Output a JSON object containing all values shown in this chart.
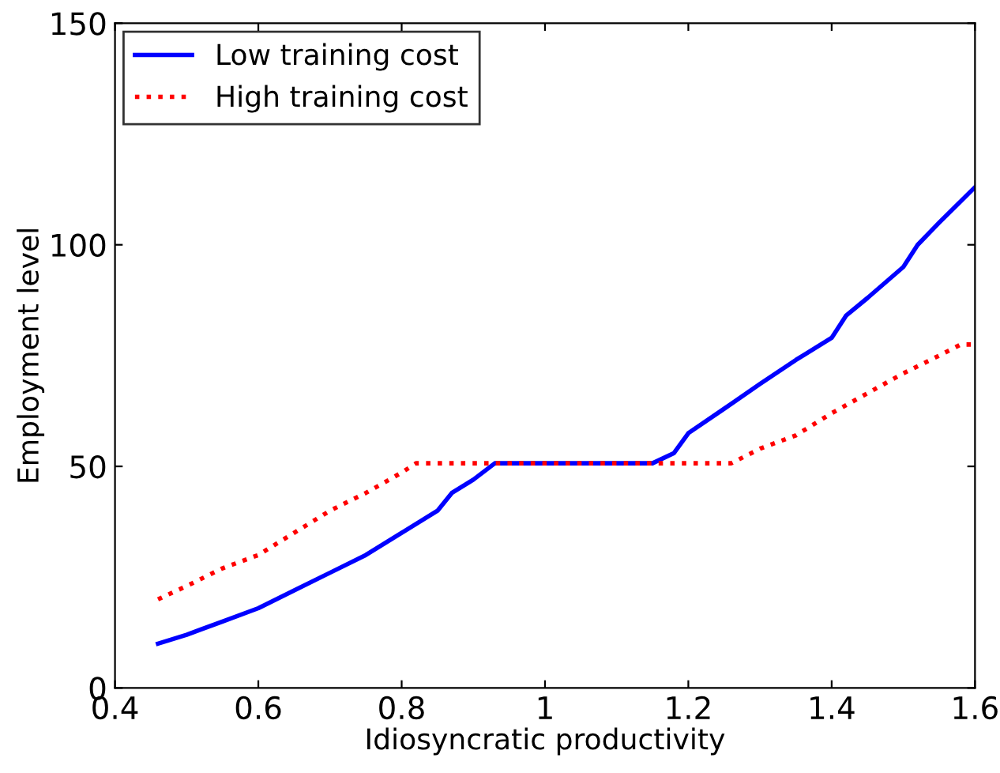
{
  "chart_data": {
    "type": "line",
    "xlabel": "Idiosyncratic productivity",
    "ylabel": "Employment level",
    "xlim": [
      0.4,
      1.6
    ],
    "xticks": [
      0.4,
      0.6,
      0.8,
      1,
      1.2,
      1.4,
      1.6
    ],
    "ylim": [
      0,
      150
    ],
    "yticks": [
      0,
      50,
      100,
      150
    ],
    "grid": false,
    "legend": "top left",
    "series": [
      {
        "name": "Low training cost",
        "color": "#0000ff",
        "line_style": "solid",
        "x": [
          0.46,
          0.5,
          0.55,
          0.6,
          0.65,
          0.7,
          0.75,
          0.8,
          0.85,
          0.87,
          0.9,
          0.93,
          1.0,
          1.1,
          1.15,
          1.18,
          1.2,
          1.25,
          1.3,
          1.35,
          1.4,
          1.42,
          1.45,
          1.5,
          1.52,
          1.55,
          1.6
        ],
        "values": [
          10,
          12,
          15,
          18,
          22,
          26,
          30,
          35,
          40,
          44,
          47,
          50.7,
          50.7,
          50.7,
          50.7,
          53,
          57.5,
          63,
          68.6,
          74,
          79,
          84,
          88,
          95,
          100,
          105,
          113
        ]
      },
      {
        "name": "High training cost",
        "color": "#ff0000",
        "line_style": "dotted",
        "x": [
          0.46,
          0.5,
          0.55,
          0.6,
          0.65,
          0.7,
          0.75,
          0.8,
          0.82,
          0.9,
          1.0,
          1.1,
          1.2,
          1.26,
          1.3,
          1.35,
          1.4,
          1.45,
          1.5,
          1.55,
          1.58,
          1.6
        ],
        "values": [
          20,
          23,
          27,
          30,
          35,
          40,
          44,
          48.6,
          50.7,
          50.7,
          50.7,
          50.7,
          50.7,
          50.7,
          54,
          57,
          62,
          66.5,
          71,
          75,
          77.5,
          77.5
        ]
      }
    ]
  }
}
